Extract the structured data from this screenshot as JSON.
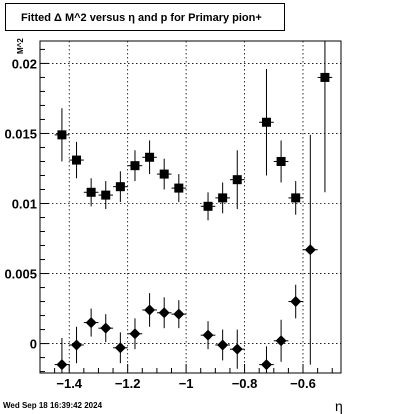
{
  "title": "Fitted Δ M^2 versus η and p for Primary pion+",
  "timestamp": "Wed Sep 18 16:39:42 2024",
  "chart_data": {
    "type": "scatter",
    "title": "Fitted Δ M^2 versus η and p for Primary pion+",
    "xlabel": "η",
    "ylabel": "M^2",
    "xlim": [
      -1.5,
      -0.47
    ],
    "ylim": [
      -0.0021,
      0.0216
    ],
    "grid": true,
    "x_ticks": [
      -1.4,
      -1.2,
      -1.0,
      -0.8,
      -0.6
    ],
    "x_tick_labels": [
      "−1.4",
      "−1.2",
      "−1",
      "−0.8",
      "−0.6"
    ],
    "y_ticks": [
      0,
      0.005,
      0.01,
      0.015,
      0.02
    ],
    "y_tick_labels": [
      "0",
      "0.005",
      "0.01",
      "0.015",
      "0.02"
    ],
    "series": [
      {
        "marker": "square",
        "points": [
          {
            "x": -1.425,
            "y": 0.0149,
            "err": 0.0019
          },
          {
            "x": -1.375,
            "y": 0.0131,
            "err": 0.0013
          },
          {
            "x": -1.325,
            "y": 0.0108,
            "err": 0.001
          },
          {
            "x": -1.275,
            "y": 0.0106,
            "err": 0.001
          },
          {
            "x": -1.225,
            "y": 0.0112,
            "err": 0.0011
          },
          {
            "x": -1.175,
            "y": 0.0127,
            "err": 0.0011
          },
          {
            "x": -1.125,
            "y": 0.0133,
            "err": 0.0012
          },
          {
            "x": -1.075,
            "y": 0.0121,
            "err": 0.0011
          },
          {
            "x": -1.025,
            "y": 0.0111,
            "err": 0.001
          },
          {
            "x": -0.925,
            "y": 0.0098,
            "err": 0.001
          },
          {
            "x": -0.875,
            "y": 0.0104,
            "err": 0.0011
          },
          {
            "x": -0.825,
            "y": 0.0117,
            "err": 0.0021
          },
          {
            "x": -0.725,
            "y": 0.0158,
            "err": 0.0038
          },
          {
            "x": -0.675,
            "y": 0.013,
            "err": 0.0015
          },
          {
            "x": -0.625,
            "y": 0.0104,
            "err": 0.0012
          },
          {
            "x": -0.525,
            "y": 0.019,
            "err": 0.0082
          }
        ]
      },
      {
        "marker": "diamond",
        "points": [
          {
            "x": -1.425,
            "y": -0.0015,
            "err": 0.0019
          },
          {
            "x": -1.375,
            "y": -0.0001,
            "err": 0.0013
          },
          {
            "x": -1.325,
            "y": 0.0015,
            "err": 0.001
          },
          {
            "x": -1.275,
            "y": 0.0011,
            "err": 0.001
          },
          {
            "x": -1.225,
            "y": -0.0003,
            "err": 0.0011
          },
          {
            "x": -1.175,
            "y": 0.0007,
            "err": 0.0011
          },
          {
            "x": -1.125,
            "y": 0.0024,
            "err": 0.0012
          },
          {
            "x": -1.075,
            "y": 0.0022,
            "err": 0.0011
          },
          {
            "x": -1.025,
            "y": 0.0021,
            "err": 0.001
          },
          {
            "x": -0.925,
            "y": 0.0006,
            "err": 0.001
          },
          {
            "x": -0.875,
            "y": -0.0001,
            "err": 0.0011
          },
          {
            "x": -0.825,
            "y": -0.0004,
            "err": 0.0014
          },
          {
            "x": -0.725,
            "y": -0.0015,
            "err": 0.0013
          },
          {
            "x": -0.675,
            "y": 0.0002,
            "err": 0.0015
          },
          {
            "x": -0.625,
            "y": 0.003,
            "err": 0.0012
          },
          {
            "x": -0.575,
            "y": 0.0067,
            "err": 0.0082
          }
        ]
      }
    ]
  }
}
